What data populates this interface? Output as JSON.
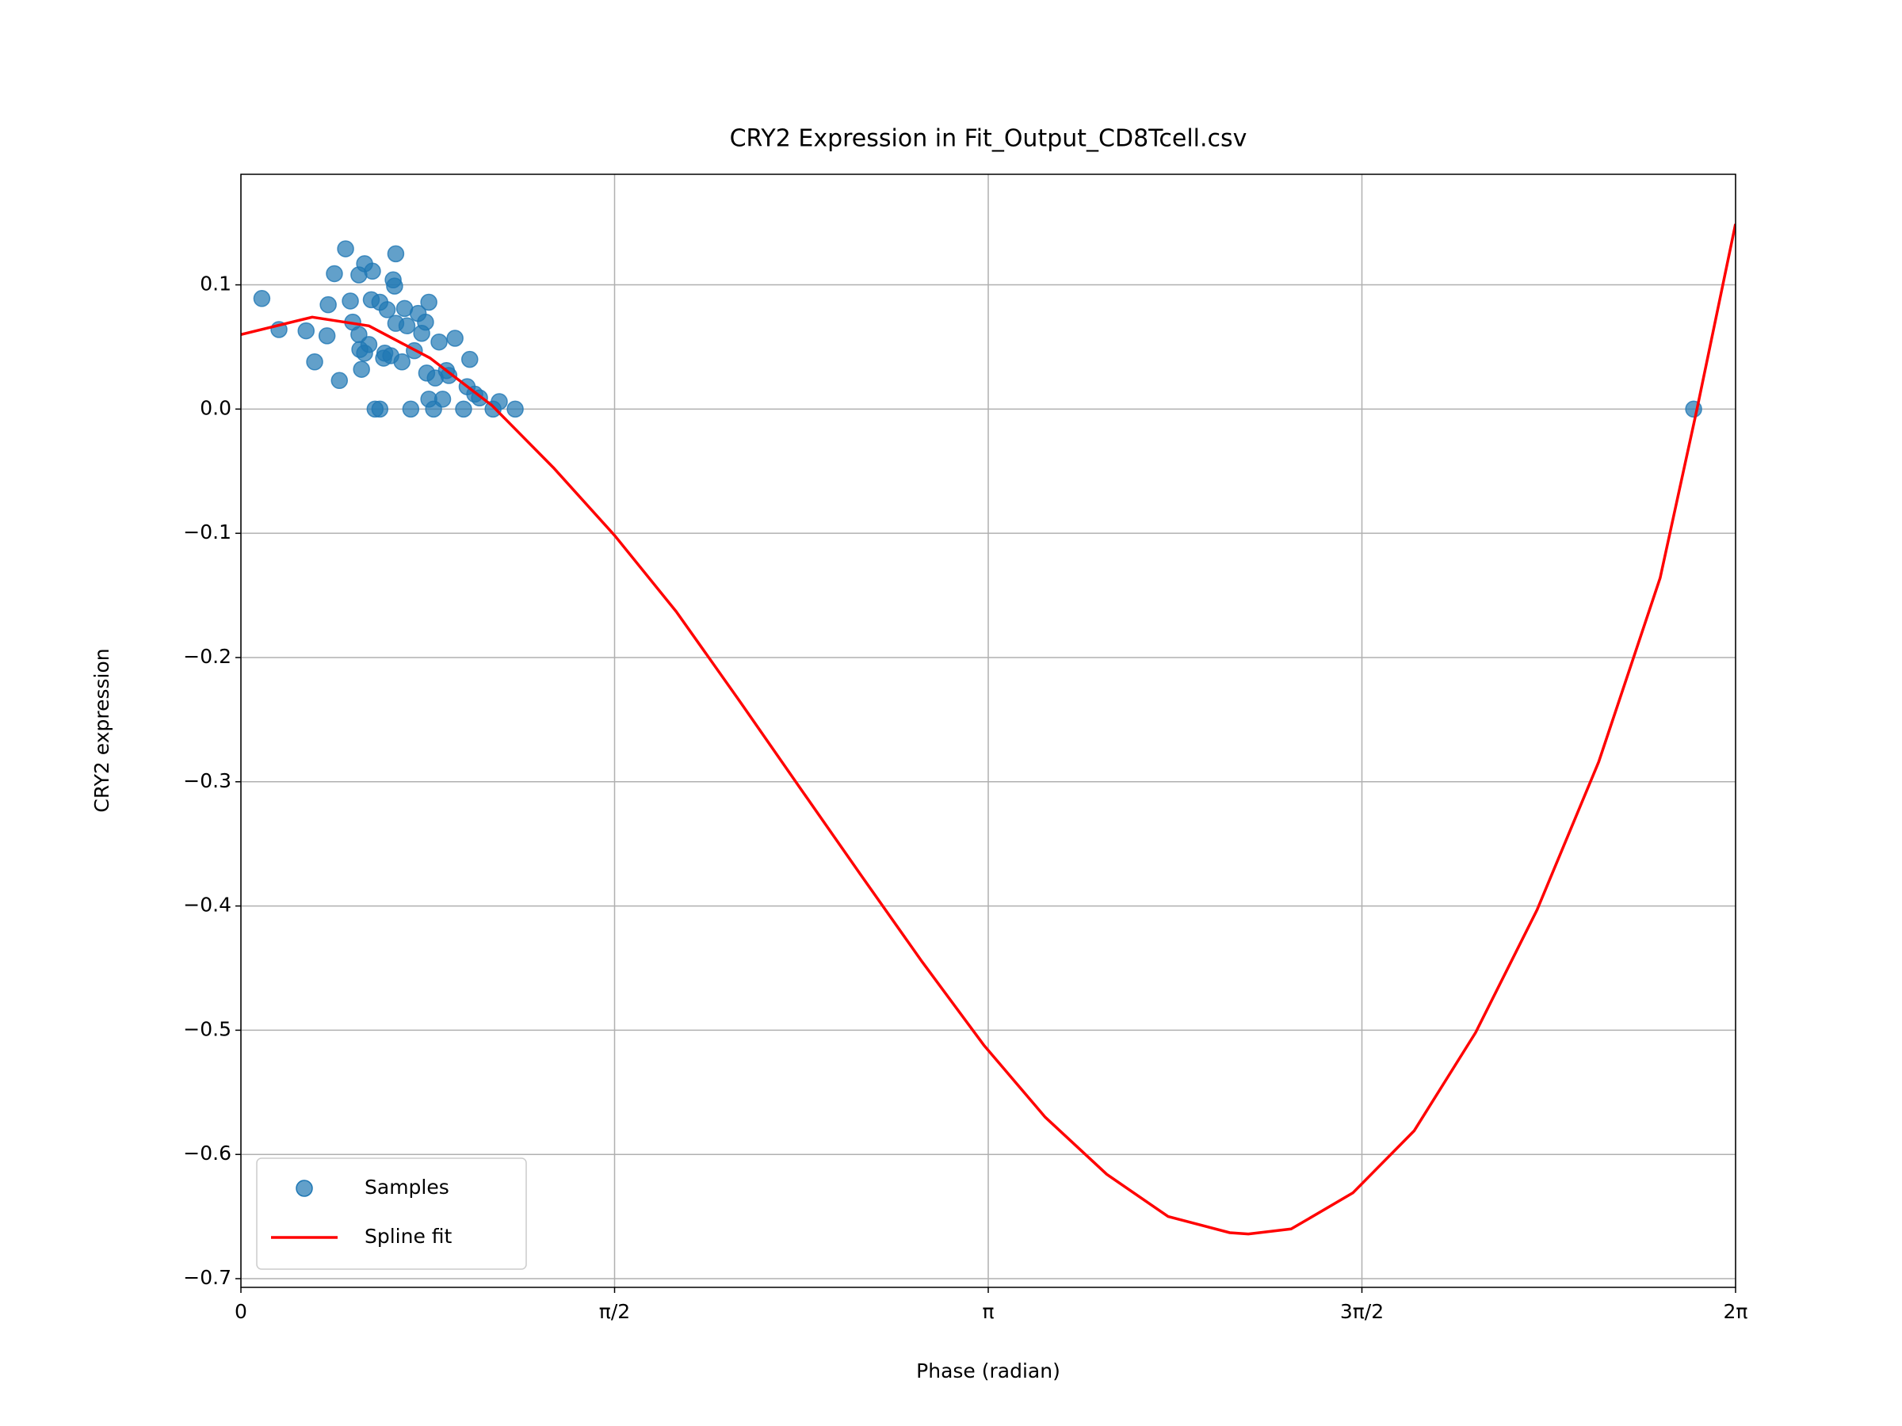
{
  "chart_data": {
    "type": "scatter",
    "title": "CRY2 Expression in Fit_Output_CD8Tcell.csv",
    "xlabel": "Phase (radian)",
    "ylabel": "CRY2 expression",
    "xlim": [
      0,
      6.2832
    ],
    "ylim": [
      -0.707,
      0.189
    ],
    "xticks": [
      0,
      {
        "value": 1.5708,
        "label": "π/2"
      },
      {
        "value": 3.1416,
        "label": "π"
      },
      {
        "value": 4.7124,
        "label": "3π/2"
      },
      {
        "value": 6.2832,
        "label": "2π"
      }
    ],
    "yticks": [
      {
        "value": -0.7,
        "label": "−0.7"
      },
      {
        "value": -0.6,
        "label": "−0.6"
      },
      {
        "value": -0.5,
        "label": "−0.5"
      },
      {
        "value": -0.4,
        "label": "−0.4"
      },
      {
        "value": -0.3,
        "label": "−0.3"
      },
      {
        "value": -0.2,
        "label": "−0.2"
      },
      {
        "value": -0.1,
        "label": "−0.1"
      },
      {
        "value": 0,
        "label": "0.0"
      },
      {
        "value": 0.1,
        "label": "0.1"
      }
    ],
    "grid": true,
    "legend": "lower left",
    "series": [
      {
        "name": "Samples",
        "type": "scatter",
        "color": "#1f77b4",
        "x": [
          0.088,
          0.16,
          0.274,
          0.31,
          0.362,
          0.367,
          0.393,
          0.414,
          0.44,
          0.46,
          0.47,
          0.496,
          0.496,
          0.5,
          0.507,
          0.52,
          0.52,
          0.538,
          0.548,
          0.553,
          0.564,
          0.584,
          0.584,
          0.6,
          0.605,
          0.615,
          0.63,
          0.64,
          0.646,
          0.651,
          0.651,
          0.677,
          0.688,
          0.698,
          0.714,
          0.729,
          0.745,
          0.76,
          0.776,
          0.781,
          0.79,
          0.79,
          0.81,
          0.817,
          0.833,
          0.848,
          0.864,
          0.874,
          0.9,
          0.936,
          0.951,
          0.962,
          0.983,
          1.003,
          1.06,
          1.086,
          1.153,
          6.107
        ],
        "values": [
          0.089,
          0.064,
          0.063,
          0.038,
          0.059,
          0.084,
          0.109,
          0.023,
          0.129,
          0.087,
          0.07,
          0.108,
          0.06,
          0.048,
          0.032,
          0.117,
          0.045,
          0.052,
          0.088,
          0.111,
          0,
          0,
          0.086,
          0.041,
          0.045,
          0.08,
          0.043,
          0.104,
          0.099,
          0.125,
          0.069,
          0.038,
          0.081,
          0.067,
          0,
          0.047,
          0.077,
          0.061,
          0.07,
          0.029,
          0.086,
          0.008,
          0,
          0.025,
          0.054,
          0.008,
          0.031,
          0.027,
          0.057,
          0,
          0.018,
          0.04,
          0.012,
          0.009,
          0,
          0.006,
          0,
          0
        ]
      },
      {
        "name": "Spline fit",
        "type": "line",
        "color": "#ff0000",
        "x": [
          0,
          0.3,
          0.538,
          0.796,
          1.055,
          1.313,
          1.572,
          1.83,
          2.089,
          2.347,
          2.606,
          2.864,
          3.123,
          3.381,
          3.64,
          3.898,
          4.157,
          4.235,
          4.415,
          4.674,
          4.932,
          5.19,
          5.449,
          5.708,
          5.966,
          6.121,
          6.283
        ],
        "values": [
          0.06,
          0.074,
          0.067,
          0.041,
          0.003,
          -0.047,
          -0.102,
          -0.163,
          -0.233,
          -0.304,
          -0.375,
          -0.445,
          -0.512,
          -0.57,
          -0.616,
          -0.65,
          -0.663,
          -0.664,
          -0.66,
          -0.631,
          -0.581,
          -0.502,
          -0.403,
          -0.284,
          -0.136,
          0,
          0.149
        ]
      }
    ]
  }
}
